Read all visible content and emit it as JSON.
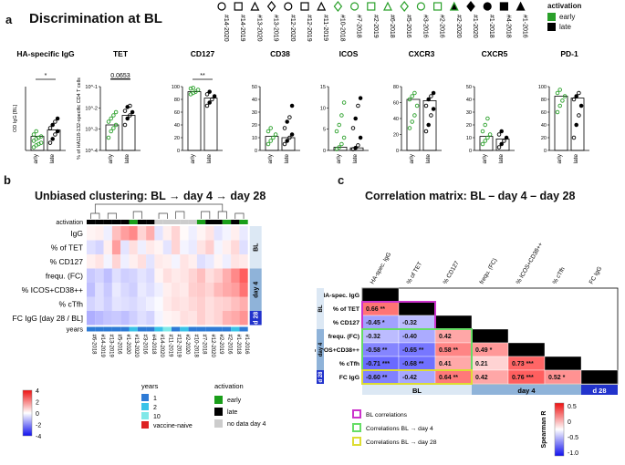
{
  "panel_a": {
    "letter": "a",
    "title": "Discrimination at BL",
    "donors": [
      "#14-2020",
      "#14-2019",
      "#13-2020",
      "#13-2019",
      "#12-2020",
      "#12-2019",
      "#11-2019",
      "#10-2018",
      "#7-2018",
      "#2-2019",
      "#6-2018",
      "#5-2016",
      "#3-2016",
      "#2-2016",
      "#2-2020",
      "#1-2020",
      "#1-2018",
      "#4-2018",
      "#1-2016"
    ],
    "activation_title": "activation",
    "activation": [
      {
        "label": "early",
        "color": "#2aa02a"
      },
      {
        "label": "late",
        "color": "#000000"
      }
    ],
    "xcats": [
      "early",
      "late"
    ],
    "plots": [
      {
        "title": "HA-specific IgG",
        "ylabel": "OD IgG [BL]",
        "sig": "*",
        "ticks": [],
        "early_bar": 0.22,
        "late_bar": 0.32,
        "early_pts": [
          0.05,
          0.08,
          0.1,
          0.12,
          0.15,
          0.18,
          0.2,
          0.22,
          0.25,
          0.3
        ],
        "late_pts": [
          0.12,
          0.18,
          0.25,
          0.3,
          0.35,
          0.4,
          0.45,
          0.5
        ]
      },
      {
        "title": "TET",
        "ylabel": "% of HA118-132-specific CD4 T cells",
        "sig": "0.0653",
        "ticks": [
          "10^-1",
          "10^-2",
          "10^-3",
          "10^-4"
        ],
        "early_bar": 0.4,
        "late_bar": 0.55,
        "early_pts": [
          0.2,
          0.3,
          0.35,
          0.4,
          0.45,
          0.5,
          0.55,
          0.6
        ],
        "late_pts": [
          0.4,
          0.5,
          0.55,
          0.6,
          0.62,
          0.68,
          0.7
        ]
      },
      {
        "title": "CD127",
        "ylabel": "",
        "sig": "**",
        "ticks": [
          "100",
          "80",
          "60",
          "40",
          "20",
          "0"
        ],
        "early_bar": 0.92,
        "late_bar": 0.82,
        "early_pts": [
          0.88,
          0.9,
          0.92,
          0.95,
          0.97,
          0.98
        ],
        "late_pts": [
          0.7,
          0.75,
          0.8,
          0.85,
          0.88,
          0.92
        ]
      },
      {
        "title": "CD38",
        "ylabel": "",
        "sig": "",
        "ticks": [
          "50",
          "40",
          "30",
          "20",
          "10",
          "0"
        ],
        "early_bar": 0.22,
        "late_bar": 0.2,
        "early_pts": [
          0.1,
          0.15,
          0.2,
          0.25,
          0.3,
          0.35
        ],
        "late_pts": [
          0.1,
          0.15,
          0.2,
          0.25,
          0.35,
          0.45,
          0.52,
          0.7
        ]
      },
      {
        "title": "ICOS",
        "ylabel": "",
        "sig": "",
        "ticks": [
          "15",
          "10",
          "5",
          "0"
        ],
        "early_bar": 0.05,
        "late_bar": 0.04,
        "early_pts": [
          0.02,
          0.05,
          0.1,
          0.2,
          0.3,
          0.4,
          0.55,
          0.75
        ],
        "late_pts": [
          0.02,
          0.04,
          0.08,
          0.2,
          0.35,
          0.5,
          0.7,
          0.82
        ]
      },
      {
        "title": "CXCR3",
        "ylabel": "",
        "sig": "",
        "ticks": [
          "80",
          "60",
          "40",
          "20",
          "0"
        ],
        "early_bar": 0.8,
        "late_bar": 0.78,
        "early_pts": [
          0.35,
          0.45,
          0.55,
          0.7,
          0.8,
          0.85,
          0.9
        ],
        "late_pts": [
          0.3,
          0.4,
          0.55,
          0.65,
          0.7,
          0.8,
          0.85,
          0.9
        ]
      },
      {
        "title": "CXCR5",
        "ylabel": "",
        "sig": "",
        "ticks": [
          "50",
          "40",
          "30",
          "20",
          "10",
          "0"
        ],
        "early_bar": 0.22,
        "late_bar": 0.18,
        "early_pts": [
          0.1,
          0.15,
          0.2,
          0.25,
          0.3,
          0.4,
          0.5
        ],
        "late_pts": [
          0.05,
          0.1,
          0.15,
          0.2,
          0.25,
          0.3
        ]
      },
      {
        "title": "PD-1",
        "ylabel": "",
        "sig": "",
        "ticks": [
          "100",
          "80",
          "60",
          "40",
          "20",
          "0"
        ],
        "early_bar": 0.85,
        "late_bar": 0.82,
        "early_pts": [
          0.6,
          0.7,
          0.78,
          0.85,
          0.9,
          0.95
        ],
        "late_pts": [
          0.2,
          0.4,
          0.55,
          0.7,
          0.8,
          0.85,
          0.9
        ]
      }
    ]
  },
  "panel_b": {
    "letter": "b",
    "title": "Unbiased clustering: BL → day 4 → day 28",
    "activation_label": "activation",
    "years_label": "years",
    "rows": [
      "IgG",
      "% of TET",
      "% CD127",
      "frequ. (FC)",
      "% ICOS+CD38++",
      "% cTfh",
      "FC IgG [day 28 / BL]"
    ],
    "row_groups": [
      {
        "label": "BL",
        "rows": 3,
        "color": "#dce8f4"
      },
      {
        "label": "day 4",
        "rows": 3,
        "color": "#8fb3d9"
      },
      {
        "label": "d 28",
        "rows": 1,
        "color": "#2233cc"
      }
    ],
    "cols": [
      "#6-2018",
      "#14-2019",
      "#13-2019",
      "#5-2016",
      "#1-2020",
      "#13-2020",
      "#3-2016",
      "#4-2018",
      "#14-2020",
      "#11-2019",
      "#12-2019",
      "#2-2020",
      "#10-2018",
      "#7-2018",
      "#12-2020",
      "#2-2019",
      "#2-2016",
      "#1-2018",
      "#1-2016"
    ],
    "activation_row": [
      "late",
      "late",
      "late",
      "late",
      "late",
      "early",
      "late",
      "late",
      "nodata",
      "nodata",
      "nodata",
      "nodata",
      "nodata",
      "early",
      "late",
      "late",
      "early",
      "late",
      "early"
    ],
    "years_row": [
      "1",
      "1",
      "1",
      "1",
      "1",
      "2",
      "1",
      "1",
      "2",
      "10",
      "1",
      "2",
      "1",
      "1",
      "1",
      "1",
      "1",
      "2",
      "1"
    ],
    "matrix": [
      [
        0.2,
        0.3,
        -0.3,
        1.2,
        1.8,
        2.2,
        0.8,
        1.5,
        -0.5,
        0.3,
        0.8,
        0.1,
        -0.3,
        0.2,
        0.5,
        -0.5,
        -0.2,
        0.3,
        -0.4
      ],
      [
        -0.6,
        -0.8,
        0.3,
        1.8,
        -0.5,
        0.6,
        -0.3,
        0.4,
        0.2,
        -0.5,
        0.8,
        -0.2,
        -0.4,
        0.5,
        0.9,
        -0.2,
        0.3,
        0.7,
        -0.6
      ],
      [
        0.3,
        0.5,
        -0.2,
        0.8,
        -0.3,
        0.3,
        0.6,
        -0.5,
        0.4,
        0.3,
        -0.2,
        0.5,
        0.3,
        -0.6,
        -0.4,
        0.2,
        -0.3,
        0.5,
        0.4
      ],
      [
        -1.0,
        -0.8,
        -1.2,
        -0.6,
        -0.9,
        -0.8,
        -0.5,
        -0.7,
        0.2,
        0.6,
        0.4,
        0.5,
        0.8,
        1.2,
        0.6,
        0.9,
        1.5,
        2.2,
        3.0
      ],
      [
        -1.2,
        -0.6,
        -1.0,
        -0.4,
        -0.7,
        -0.9,
        -0.4,
        -0.6,
        -0.3,
        0.3,
        0.5,
        0.4,
        0.9,
        1.0,
        0.8,
        1.3,
        1.6,
        1.8,
        2.6
      ],
      [
        -0.8,
        -0.6,
        -0.9,
        -0.5,
        -0.6,
        -0.7,
        -0.5,
        -0.3,
        -0.1,
        0.4,
        0.6,
        0.5,
        0.7,
        0.9,
        0.6,
        0.8,
        0.9,
        1.2,
        1.5
      ],
      [
        -1.5,
        -1.3,
        -1.1,
        -1.0,
        -1.2,
        -0.9,
        -0.6,
        -0.8,
        -0.2,
        0.2,
        0.3,
        0.6,
        0.5,
        0.9,
        0.6,
        0.8,
        1.4,
        1.6,
        2.0
      ]
    ],
    "scale_ticks": [
      "4",
      "2",
      "0",
      "-2",
      "-4"
    ],
    "years_legend": [
      {
        "label": "1",
        "color": "#2e7bd6"
      },
      {
        "label": "2",
        "color": "#3ac3e8"
      },
      {
        "label": "10",
        "color": "#7fe8e8"
      },
      {
        "label": "vaccine-naive",
        "color": "#dd2222"
      }
    ],
    "activation_legend": [
      {
        "label": "early",
        "color": "#1a9e1a"
      },
      {
        "label": "late",
        "color": "#000000"
      },
      {
        "label": "no data day 4",
        "color": "#cccccc"
      }
    ]
  },
  "panel_c": {
    "letter": "c",
    "title": "Correlation matrix: BL – day 4 – day 28",
    "col_labels": [
      "HA-spec. IgG",
      "% of TET",
      "% CD127",
      "frequ. (FC)",
      "% ICOS+CD38++",
      "% cTfh",
      "FC IgG"
    ],
    "row_labels": [
      "HA-spec. IgG",
      "% of TET",
      "% CD127",
      "frequ. (FC)",
      "% ICOS+CD38++",
      "% cTfh",
      "FC IgG"
    ],
    "cells": [
      [
        null
      ],
      [
        "0.66 **",
        null
      ],
      [
        "-0.45 *",
        "-0.32",
        null
      ],
      [
        "-0.32",
        "-0.40",
        "0.42",
        null
      ],
      [
        "-0.58 **",
        "-0.65 **",
        "0.58 **",
        "0.49 *",
        null
      ],
      [
        "-0.71 ***",
        "-0.68 **",
        "0.41",
        "0.21",
        "0.73 ***",
        null
      ],
      [
        "-0.60 **",
        "-0.42",
        "0.64 **",
        "0.42",
        "0.76 ***",
        "0.52 *",
        null
      ]
    ],
    "values": [
      [
        1
      ],
      [
        0.66,
        1
      ],
      [
        -0.45,
        -0.32,
        1
      ],
      [
        -0.32,
        -0.4,
        0.42,
        1
      ],
      [
        -0.58,
        -0.65,
        0.58,
        0.49,
        1
      ],
      [
        -0.71,
        -0.68,
        0.41,
        0.21,
        0.73,
        1
      ],
      [
        -0.6,
        -0.42,
        0.64,
        0.42,
        0.76,
        0.52,
        1
      ]
    ],
    "bottom_groups": [
      "BL",
      "day 4",
      "d 28"
    ],
    "side_groups": [
      "BL",
      "day 4",
      "d 28"
    ],
    "legend": [
      {
        "label": "BL correlations",
        "color": "#cc33cc"
      },
      {
        "label": "Correlations BL → day 4",
        "color": "#66dd66"
      },
      {
        "label": "Correlations BL → day 28",
        "color": "#dddd33"
      }
    ],
    "scale_label": "Spearman R",
    "scale_ticks": [
      "0.5",
      "0",
      "-0.5",
      "-1.0"
    ]
  }
}
